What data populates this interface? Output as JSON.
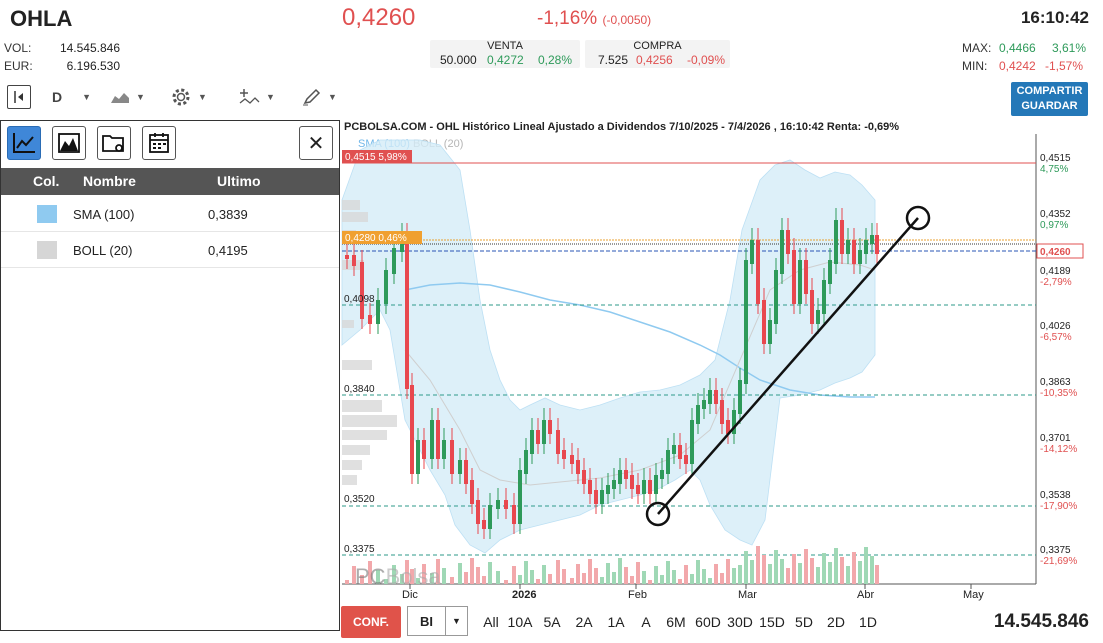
{
  "header": {
    "ticker": "OHLA",
    "price": "0,4260",
    "change_pct": "-1,16%",
    "change_abs": "(-0,0050)",
    "time": "16:10:42",
    "vol_label": "VOL:",
    "vol_value": "14.545.846",
    "eur_label": "EUR:",
    "eur_value": "6.196.530",
    "venta": {
      "label": "VENTA",
      "qty": "50.000",
      "price": "0,4272",
      "pct": "0,28%"
    },
    "compra": {
      "label": "COMPRA",
      "qty": "7.525",
      "price": "0,4256",
      "pct": "-0,09%"
    },
    "max_label": "MAX:",
    "max_value": "0,4466",
    "max_pct": "3,61%",
    "min_label": "MIN:",
    "min_value": "0,4242",
    "min_pct": "-1,57%"
  },
  "toolbar": {
    "period": "D",
    "share_line1": "COMPARTIR",
    "share_line2": "GUARDAR",
    "icons": [
      "panel-toggle-icon",
      "area-chart-icon",
      "gear-icon",
      "indicators-icon",
      "pencil-icon"
    ]
  },
  "panel": {
    "headers": {
      "col": "Col.",
      "name": "Nombre",
      "last": "Ultimo"
    },
    "rows": [
      {
        "name": "SMA (100)",
        "value": "0,3839",
        "color": "#8fcaf0"
      },
      {
        "name": "BOLL (20)",
        "value": "0,4195",
        "color": "#d6d6d6"
      }
    ],
    "close": "✕"
  },
  "chart": {
    "title": "PCBOLSA.COM - OHL Histórico Lineal Ajustado a Dividendos 7/10/2025 - 7/4/2026 , 16:10:42 Renta: -0,69%",
    "legend_sma": "SMA (100)",
    "legend_boll": "BOLL (20)",
    "watermark_a": "PC",
    "watermark_b": "Bolsa",
    "badge_high": {
      "price": "0,4515",
      "pct": "5,98%"
    },
    "badge_last": {
      "price": "0,4280",
      "pct": "0,46%"
    },
    "left_levels": [
      "0,4098",
      "0,3840",
      "0,3520",
      "0,3375"
    ],
    "right_axis": [
      {
        "p": "0,4515",
        "c": "4,75%"
      },
      {
        "p": "0,4352",
        "c": "0,97%"
      },
      {
        "p": "0,4260",
        "c": ""
      },
      {
        "p": "0,4189",
        "c": "-2,79%"
      },
      {
        "p": "0,4026",
        "c": "-6,57%"
      },
      {
        "p": "0,3863",
        "c": "-10,35%"
      },
      {
        "p": "0,3701",
        "c": "-14,12%"
      },
      {
        "p": "0,3538",
        "c": "-17,90%"
      },
      {
        "p": "0,3375",
        "c": "-21,69%"
      }
    ],
    "x_labels": [
      "Dic",
      "2026",
      "Feb",
      "Mar",
      "Abr",
      "May"
    ]
  },
  "bottom": {
    "conf": "CONF.",
    "bi": "BI",
    "ranges": [
      "All",
      "10A",
      "5A",
      "2A",
      "1A",
      "A",
      "6M",
      "60D",
      "30D",
      "15D",
      "5D",
      "2D",
      "1D"
    ],
    "volume": "14.545.846"
  }
}
